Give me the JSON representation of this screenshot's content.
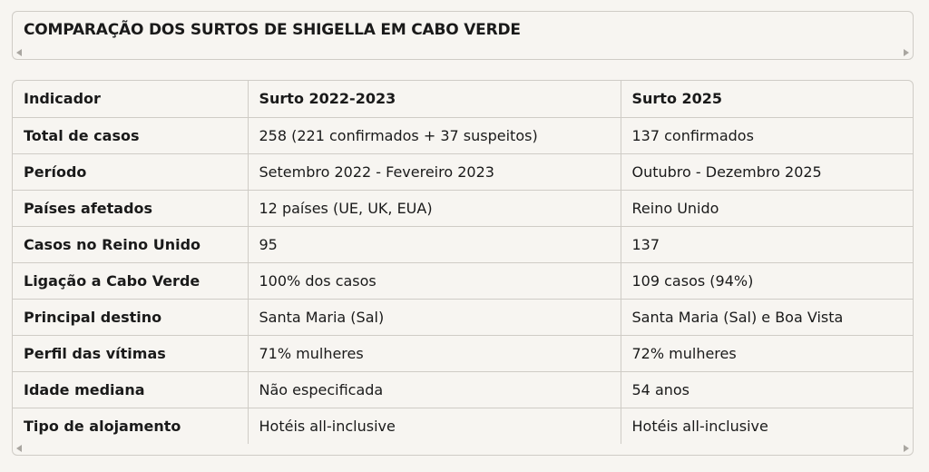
{
  "title": "COMPARAÇÃO DOS SURTOS DE SHIGELLA EM CABO VERDE",
  "table": {
    "headers": [
      "Indicador",
      "Surto 2022-2023",
      "Surto 2025"
    ],
    "rows": [
      [
        "Total de casos",
        "258 (221 confirmados + 37 suspeitos)",
        "137 confirmados"
      ],
      [
        "Período",
        "Setembro 2022 - Fevereiro 2023",
        "Outubro - Dezembro 2025"
      ],
      [
        "Países afetados",
        "12 países (UE, UK, EUA)",
        "Reino Unido"
      ],
      [
        "Casos no Reino Unido",
        "95",
        "137"
      ],
      [
        "Ligação a Cabo Verde",
        "100% dos casos",
        "109 casos (94%)"
      ],
      [
        "Principal destino",
        "Santa Maria (Sal)",
        "Santa Maria (Sal) e Boa Vista"
      ],
      [
        "Perfil das vítimas",
        "71% mulheres",
        "72% mulheres"
      ],
      [
        "Idade mediana",
        "Não especificada",
        "54 anos"
      ],
      [
        "Tipo de alojamento",
        "Hotéis all-inclusive",
        "Hotéis all-inclusive"
      ]
    ]
  },
  "icons": {
    "scroll_left": "triangle-left-icon",
    "scroll_right": "triangle-right-icon"
  }
}
